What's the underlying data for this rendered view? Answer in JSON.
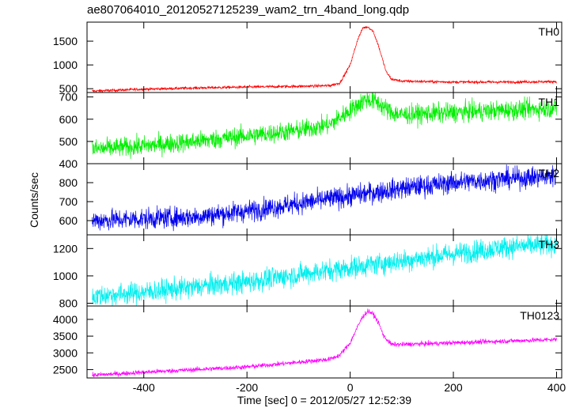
{
  "chart_data": {
    "type": "line",
    "title": "ae807064010_20120527125239_wam2_trn_4band_long.qdp",
    "xlabel": "Time [sec] 0 = 2012/05/27 12:52:39",
    "ylabel": "Counts/sec",
    "xlim": [
      -510,
      410
    ],
    "xticks": [
      -400,
      -200,
      0,
      200,
      400
    ],
    "grid": false,
    "panels": [
      {
        "name": "TH0",
        "color": "#ff0000",
        "ylim": [
          420,
          1900
        ],
        "yticks": [
          500,
          1000,
          1500
        ],
        "ytick_labels": [
          "500",
          "1000",
          "1500"
        ],
        "noise": 15,
        "x": [
          -500,
          -400,
          -300,
          -200,
          -100,
          -40,
          -20,
          0,
          15,
          25,
          35,
          45,
          55,
          70,
          80,
          100,
          200,
          300,
          400
        ],
        "y": [
          450,
          490,
          515,
          535,
          550,
          565,
          620,
          1000,
          1550,
          1780,
          1800,
          1700,
          1400,
          850,
          700,
          660,
          640,
          640,
          650
        ]
      },
      {
        "name": "TH1",
        "color": "#00ee00",
        "ylim": [
          400,
          720
        ],
        "yticks": [
          400,
          500,
          600,
          700
        ],
        "ytick_labels": [
          "400",
          "500",
          "600",
          "700"
        ],
        "noise": 22,
        "x": [
          -500,
          -400,
          -300,
          -200,
          -100,
          -40,
          0,
          30,
          50,
          80,
          100,
          200,
          300,
          400
        ],
        "y": [
          465,
          480,
          500,
          525,
          550,
          575,
          640,
          690,
          680,
          630,
          620,
          630,
          640,
          650
        ]
      },
      {
        "name": "TH2",
        "color": "#0000ee",
        "ylim": [
          525,
          900
        ],
        "yticks": [
          600,
          700,
          800
        ],
        "ytick_labels": [
          "600",
          "700",
          "800"
        ],
        "noise": 28,
        "x": [
          -500,
          -400,
          -300,
          -200,
          -100,
          0,
          100,
          200,
          300,
          400
        ],
        "y": [
          600,
          610,
          620,
          650,
          690,
          730,
          770,
          800,
          820,
          835
        ]
      },
      {
        "name": "TH3",
        "color": "#00eeee",
        "ylim": [
          780,
          1300
        ],
        "yticks": [
          800,
          1000,
          1200
        ],
        "ytick_labels": [
          "800",
          "1000",
          "1200"
        ],
        "noise": 40,
        "x": [
          -500,
          -400,
          -300,
          -200,
          -100,
          0,
          100,
          200,
          300,
          400
        ],
        "y": [
          850,
          880,
          920,
          955,
          1010,
          1060,
          1110,
          1160,
          1210,
          1230
        ]
      },
      {
        "name": "TH0123",
        "color": "#ff00ff",
        "ylim": [
          2250,
          4400
        ],
        "yticks": [
          2500,
          3000,
          3500,
          4000
        ],
        "ytick_labels": [
          "2500",
          "3000",
          "3500",
          "4000"
        ],
        "noise": 35,
        "x": [
          -500,
          -400,
          -300,
          -200,
          -100,
          -40,
          -20,
          0,
          15,
          25,
          35,
          45,
          55,
          65,
          80,
          100,
          200,
          300,
          400
        ],
        "y": [
          2330,
          2420,
          2500,
          2580,
          2720,
          2810,
          2930,
          3300,
          3800,
          4100,
          4250,
          4150,
          3900,
          3500,
          3250,
          3250,
          3300,
          3350,
          3400
        ]
      }
    ]
  }
}
